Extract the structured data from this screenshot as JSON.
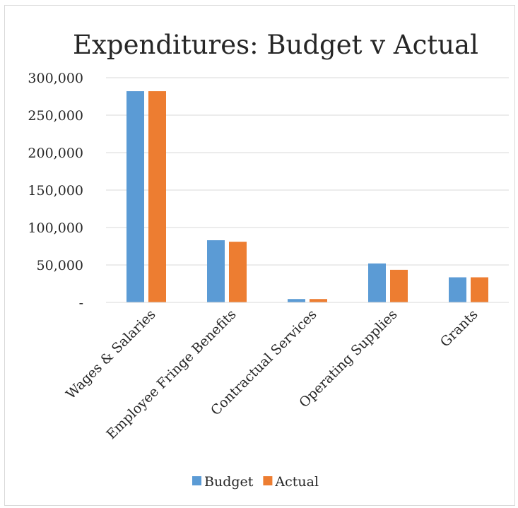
{
  "chart_data": {
    "type": "bar",
    "title": "Expenditures: Budget v Actual",
    "categories": [
      "Wages & Salaries",
      "Employee Fringe Benefits",
      "Contractual Services",
      "Operating Supplies",
      "Grants"
    ],
    "series": [
      {
        "name": "Budget",
        "color": "#5b9bd5",
        "values": [
          282000,
          83000,
          4500,
          52000,
          33500
        ]
      },
      {
        "name": "Actual",
        "color": "#ed7d31",
        "values": [
          282000,
          81000,
          4500,
          43500,
          33500
        ]
      }
    ],
    "yticks": [
      {
        "value": 0,
        "label": "-"
      },
      {
        "value": 50000,
        "label": "50,000"
      },
      {
        "value": 100000,
        "label": "100,000"
      },
      {
        "value": 150000,
        "label": "150,000"
      },
      {
        "value": 200000,
        "label": "200,000"
      },
      {
        "value": 250000,
        "label": "250,000"
      },
      {
        "value": 300000,
        "label": "300,000"
      }
    ],
    "ylim": [
      0,
      300000
    ],
    "grid": true,
    "legend_position": "bottom"
  }
}
